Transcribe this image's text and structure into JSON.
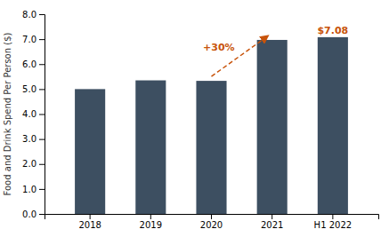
{
  "chart_data": {
    "type": "bar",
    "categories": [
      "2018",
      "2019",
      "2020",
      "2021",
      "H1 2022"
    ],
    "values": [
      5.0,
      5.35,
      5.33,
      6.97,
      7.08
    ],
    "color": "#3d4f61",
    "ylabel": "Food and Drink Spend Per Person ($)",
    "ylim": [
      0,
      8.0
    ],
    "yticks": [
      {
        "value": 0.0,
        "label": "0.0"
      },
      {
        "value": 1.0,
        "label": "1.0"
      },
      {
        "value": 2.0,
        "label": "2.0"
      },
      {
        "value": 3.0,
        "label": "3.0"
      },
      {
        "value": 4.0,
        "label": "4.0"
      },
      {
        "value": 5.0,
        "label": "5.0"
      },
      {
        "value": 6.0,
        "label": "6.0"
      },
      {
        "value": 7.0,
        "label": "7.0"
      },
      {
        "value": 8.0,
        "label": "8.0"
      }
    ],
    "grid": false,
    "annotations": [
      {
        "text": "+30%",
        "from": "2020",
        "to": "2021",
        "color": "#c8530a"
      },
      {
        "text": "$7.08",
        "category": "H1 2022",
        "color": "#c8530a"
      }
    ]
  }
}
